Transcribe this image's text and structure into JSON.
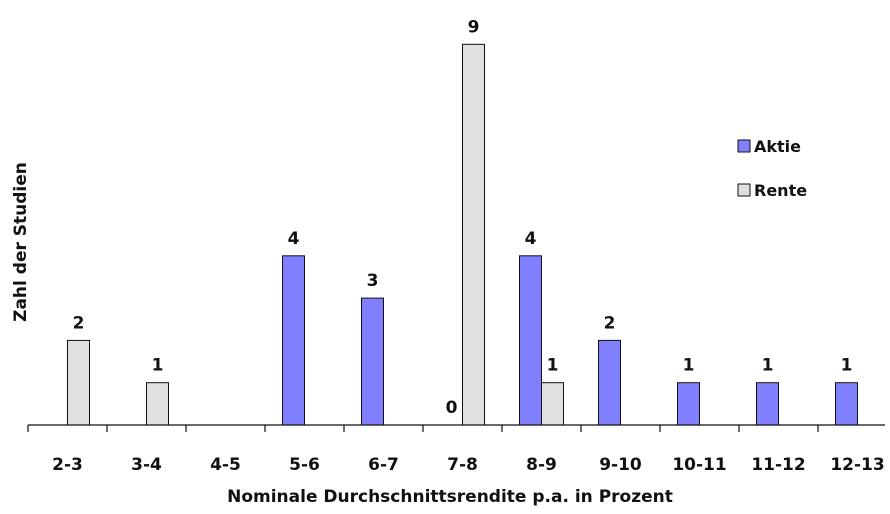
{
  "chart_data": {
    "type": "bar",
    "categories": [
      "2-3",
      "3-4",
      "4-5",
      "5-6",
      "6-7",
      "7-8",
      "8-9",
      "9-10",
      "10-11",
      "11-12",
      "12-13"
    ],
    "series": [
      {
        "name": "Aktie",
        "color": "#8080ff",
        "values": [
          null,
          null,
          null,
          4,
          3,
          0,
          4,
          2,
          1,
          1,
          1
        ]
      },
      {
        "name": "Rente",
        "color": "#e0e0e0",
        "values": [
          2,
          1,
          null,
          null,
          null,
          9,
          1,
          null,
          null,
          null,
          null
        ]
      }
    ],
    "xlabel": "Nominale Durchschnittsrendite p.a. in Prozent",
    "ylabel": "Zahl der Studien",
    "ylim": [
      0,
      9
    ],
    "grid": false,
    "legend_position": "right"
  }
}
